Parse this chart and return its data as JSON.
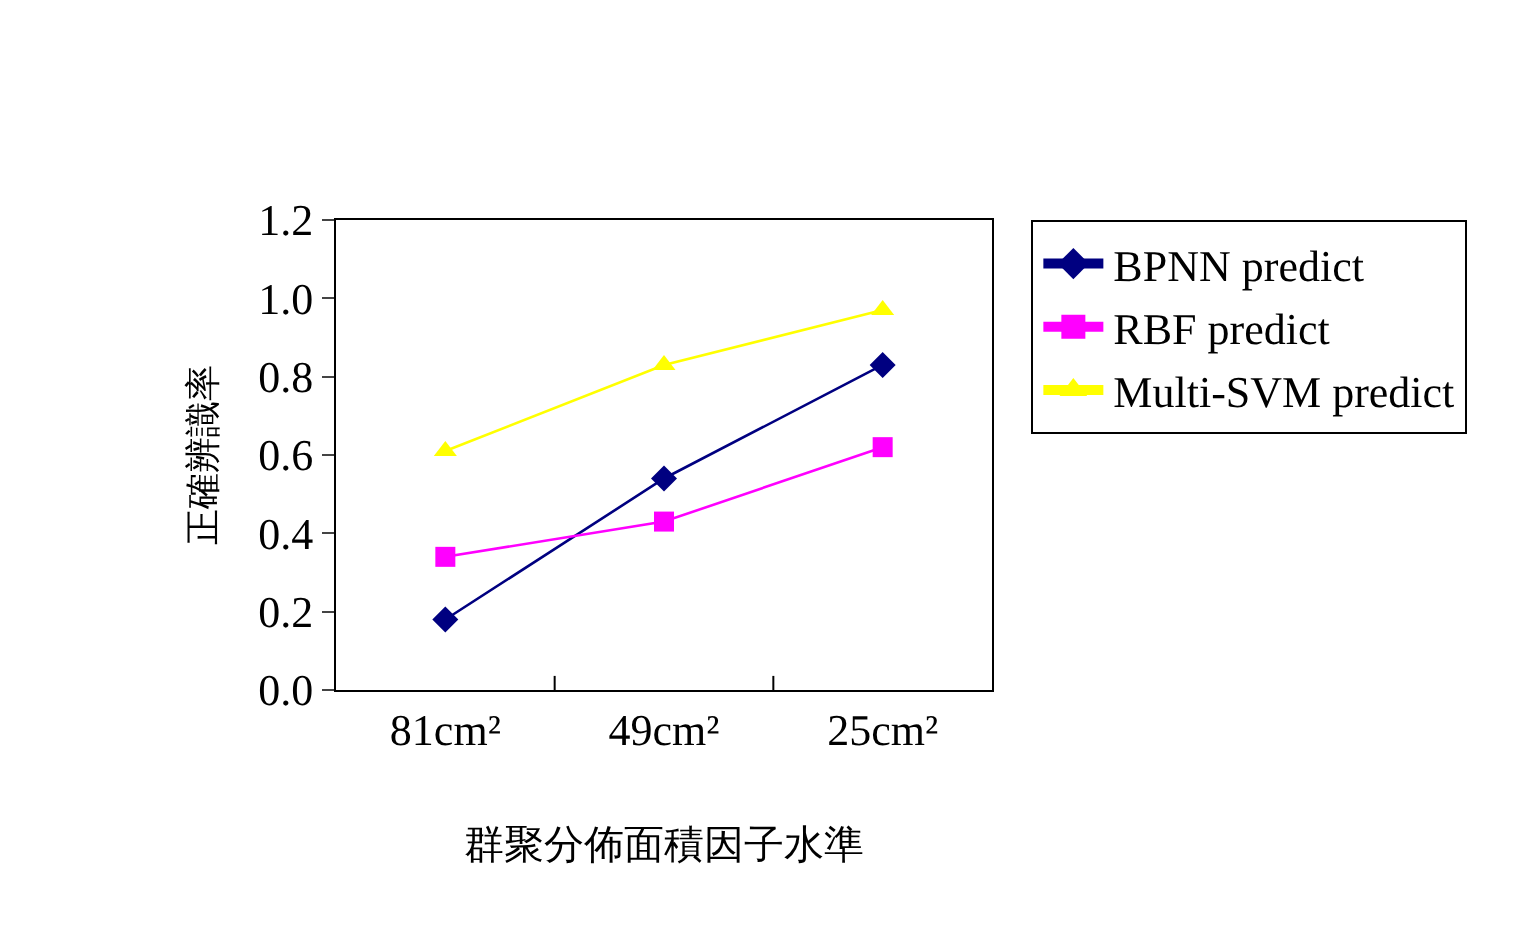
{
  "chart_data": {
    "type": "line",
    "xlabel": "群聚分佈面積因子水準",
    "ylabel": "正確辨識率",
    "categories": [
      "81cm²",
      "49cm²",
      "25cm²"
    ],
    "series": [
      {
        "name": "BPNN predict",
        "color": "#000080",
        "marker": "diamond",
        "values": [
          0.18,
          0.54,
          0.83
        ]
      },
      {
        "name": "RBF predict",
        "color": "#ff00ff",
        "marker": "square",
        "values": [
          0.34,
          0.43,
          0.62
        ]
      },
      {
        "name": "Multi-SVM predict",
        "color": "#ffff00",
        "marker": "triangle",
        "values": [
          0.61,
          0.83,
          0.97
        ]
      }
    ],
    "ylim": [
      0,
      1.2
    ],
    "yticks": [
      {
        "value": 0,
        "label": "0.0"
      },
      0.2,
      0.4,
      0.6,
      0.8,
      {
        "value": 1,
        "label": "1.0"
      },
      1.2
    ],
    "grid": false,
    "legend": "right",
    "line_style": "solid"
  }
}
